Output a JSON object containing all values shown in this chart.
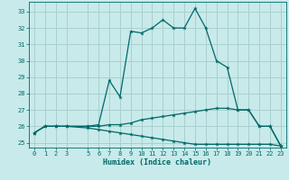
{
  "xlabel": "Humidex (Indice chaleur)",
  "background_color": "#c8eaea",
  "grid_color": "#aacfcf",
  "line_color": "#006868",
  "xlim": [
    -0.5,
    23.5
  ],
  "ylim": [
    24.7,
    33.6
  ],
  "yticks": [
    25,
    26,
    27,
    28,
    29,
    30,
    31,
    32,
    33
  ],
  "xticks": [
    0,
    1,
    2,
    3,
    5,
    6,
    7,
    8,
    9,
    10,
    11,
    12,
    13,
    14,
    15,
    16,
    17,
    18,
    19,
    20,
    21,
    22,
    23
  ],
  "curve1_x": [
    0,
    1,
    2,
    3,
    5,
    6,
    7,
    8,
    9,
    10,
    11,
    12,
    13,
    14,
    15,
    16,
    17,
    18,
    19,
    20,
    21,
    22,
    23
  ],
  "curve1_y": [
    25.6,
    26.0,
    26.0,
    26.0,
    26.0,
    26.1,
    28.8,
    27.8,
    31.8,
    31.7,
    32.0,
    32.5,
    32.0,
    32.0,
    33.2,
    32.0,
    30.0,
    29.6,
    27.0,
    27.0,
    26.0,
    26.0,
    24.8
  ],
  "curve2_x": [
    0,
    1,
    2,
    3,
    5,
    6,
    7,
    8,
    9,
    10,
    11,
    12,
    13,
    14,
    15,
    16,
    17,
    18,
    19,
    20,
    21,
    22,
    23
  ],
  "curve2_y": [
    25.6,
    26.0,
    26.0,
    26.0,
    26.0,
    26.0,
    26.1,
    26.1,
    26.2,
    26.4,
    26.5,
    26.6,
    26.7,
    26.8,
    26.9,
    27.0,
    27.1,
    27.1,
    27.0,
    27.0,
    26.0,
    26.0,
    24.8
  ],
  "curve3_x": [
    0,
    1,
    2,
    3,
    5,
    6,
    7,
    8,
    9,
    10,
    11,
    12,
    13,
    14,
    15,
    16,
    17,
    18,
    19,
    20,
    21,
    22,
    23
  ],
  "curve3_y": [
    25.6,
    26.0,
    26.0,
    26.0,
    25.9,
    25.8,
    25.7,
    25.6,
    25.5,
    25.4,
    25.3,
    25.2,
    25.1,
    25.0,
    24.9,
    24.9,
    24.9,
    24.9,
    24.9,
    24.9,
    24.9,
    24.9,
    24.8
  ]
}
